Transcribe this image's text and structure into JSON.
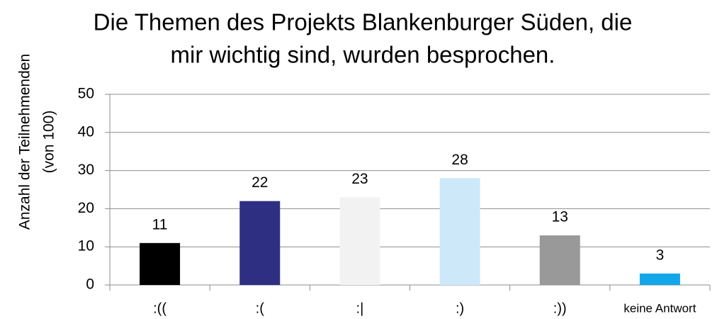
{
  "chart_data": {
    "type": "bar",
    "title": [
      "Die Themen des Projekts Blankenburger Süden, die",
      "mir wichtig sind, wurden besprochen."
    ],
    "y_label": [
      "Anzahl der Teilnehmenden",
      "(von 100)"
    ],
    "categories": [
      ":((",
      ":(",
      ":|",
      ":)",
      ":))",
      "keine Antwort"
    ],
    "values": [
      11,
      22,
      23,
      28,
      13,
      3
    ],
    "colors": [
      "#000000",
      "#2e2e82",
      "#f2f2f2",
      "#cde9f9",
      "#999999",
      "#12a7e8"
    ],
    "ylim": [
      0,
      50
    ],
    "yticks": [
      0,
      10,
      20,
      30,
      40,
      50
    ],
    "grid": true
  }
}
